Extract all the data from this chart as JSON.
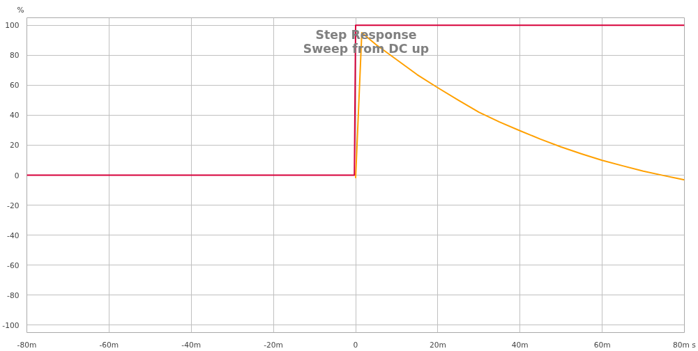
{
  "chart_data": {
    "type": "line",
    "title": "Step Response",
    "subtitle": "Sweep from DC up",
    "ylabel": "%",
    "series": [
      {
        "color": "#ffa000",
        "x": [
          0,
          1.5,
          5,
          10,
          15,
          20,
          25,
          30,
          35,
          40,
          45,
          50,
          55,
          60,
          65,
          70,
          75,
          80
        ],
        "values": [
          -2,
          95,
          87,
          77,
          67,
          58.3,
          50,
          42,
          35.5,
          29.6,
          24,
          18.8,
          14.2,
          9.9,
          6.2,
          2.7,
          -0.3,
          -3.1
        ]
      },
      {
        "color": "#d7003a",
        "x": [
          -80,
          -0.3,
          0,
          80
        ],
        "values": [
          0,
          0,
          100,
          100
        ]
      }
    ],
    "xlim": [
      -80,
      80
    ],
    "ylim": [
      -105,
      105
    ],
    "xticks": [
      {
        "value": -80,
        "label": "-80m"
      },
      {
        "value": -60,
        "label": "-60m"
      },
      {
        "value": -40,
        "label": "-40m"
      },
      {
        "value": -20,
        "label": "-20m"
      },
      0,
      {
        "value": 20,
        "label": "20m"
      },
      {
        "value": 40,
        "label": "40m"
      },
      {
        "value": 60,
        "label": "60m"
      },
      {
        "value": 80,
        "label": "80m s"
      }
    ],
    "yticks": [
      -100,
      -80,
      -60,
      -40,
      -20,
      0,
      20,
      40,
      60,
      80,
      100
    ],
    "grid": true
  }
}
